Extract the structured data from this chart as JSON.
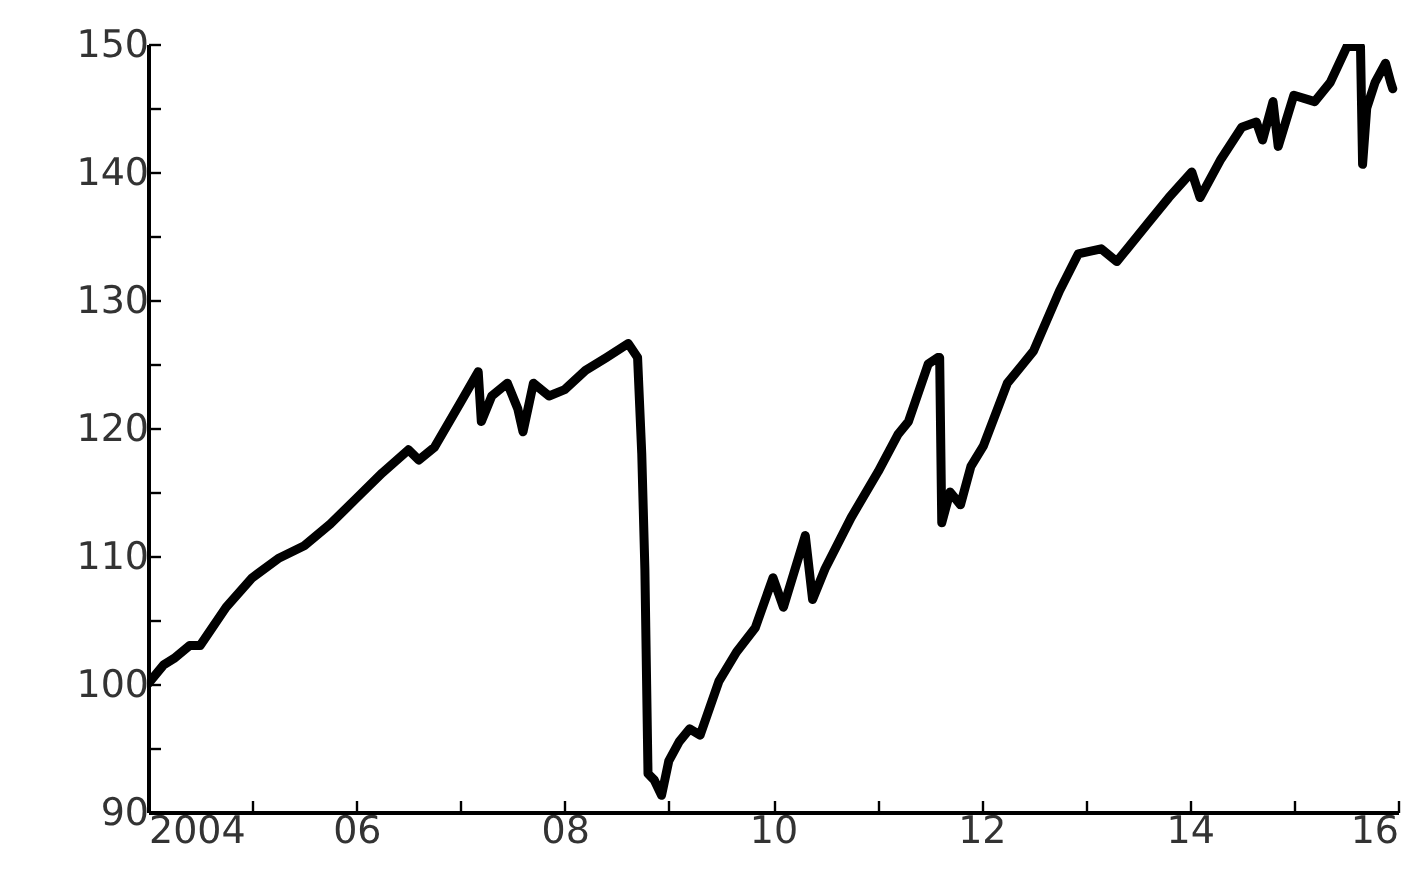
{
  "chart_data": {
    "type": "line",
    "xlim": [
      2004,
      2016
    ],
    "ylim": [
      90,
      150
    ],
    "xticks": [
      2004,
      {
        "value": 2005,
        "label": null
      },
      {
        "value": 2006,
        "label": "06"
      },
      {
        "value": 2007,
        "label": null
      },
      {
        "value": 2008,
        "label": "08"
      },
      {
        "value": 2009,
        "label": null
      },
      {
        "value": 2010,
        "label": "10"
      },
      {
        "value": 2011,
        "label": null
      },
      {
        "value": 2012,
        "label": "12"
      },
      {
        "value": 2013,
        "label": null
      },
      {
        "value": 2014,
        "label": "14"
      },
      {
        "value": 2015,
        "label": null
      },
      {
        "value": 2016,
        "label": "16"
      }
    ],
    "yticks": [
      90,
      {
        "value": 95,
        "label": null
      },
      100,
      {
        "value": 105,
        "label": null
      },
      110,
      {
        "value": 115,
        "label": null
      },
      120,
      {
        "value": 125,
        "label": null
      },
      130,
      {
        "value": 135,
        "label": null
      },
      140,
      {
        "value": 145,
        "label": null
      },
      150
    ],
    "grid": false,
    "marker": "none",
    "line_style": "solid",
    "series": [
      {
        "color": "#000000",
        "x": [
          2004.0,
          2004.15,
          2004.25,
          2004.4,
          2004.5,
          2004.75,
          2005.0,
          2005.25,
          2005.5,
          2005.75,
          2006.0,
          2006.25,
          2006.5,
          2006.6,
          2006.75,
          2007.0,
          2007.17,
          2007.2,
          2007.3,
          2007.45,
          2007.55,
          2007.6,
          2007.7,
          2007.85,
          2008.0,
          2008.2,
          2008.4,
          2008.61,
          2008.7,
          2008.74,
          2008.77,
          2008.8,
          2008.86,
          2008.93,
          2009.0,
          2009.1,
          2009.2,
          2009.3,
          2009.48,
          2009.65,
          2009.83,
          2010.0,
          2010.1,
          2010.31,
          2010.38,
          2010.5,
          2010.75,
          2011.01,
          2011.2,
          2011.3,
          2011.49,
          2011.58,
          2011.6,
          2011.62,
          2011.7,
          2011.8,
          2011.9,
          2012.02,
          2012.25,
          2012.5,
          2012.75,
          2012.93,
          2013.15,
          2013.3,
          2013.4,
          2013.6,
          2013.8,
          2014.02,
          2014.1,
          2014.3,
          2014.5,
          2014.64,
          2014.7,
          2014.8,
          2014.85,
          2015.0,
          2015.2,
          2015.35,
          2015.51,
          2015.6,
          2015.64,
          2015.66,
          2015.7,
          2015.78,
          2015.88,
          2015.93,
          2015.95
        ],
        "values": [
          100,
          101.5,
          102,
          103,
          103,
          106,
          108.3,
          109.8,
          110.8,
          112.5,
          114.5,
          116.5,
          118.3,
          117.5,
          118.5,
          122,
          124.4,
          120.5,
          122.5,
          123.5,
          121.5,
          119.7,
          123.5,
          122.5,
          123,
          124.5,
          125.5,
          126.6,
          125.5,
          118,
          109,
          93,
          92.5,
          91.3,
          94,
          95.5,
          96.5,
          96,
          100.2,
          102.5,
          104.4,
          108.3,
          106,
          111.6,
          106.6,
          109,
          113,
          116.6,
          119.5,
          120.5,
          125,
          125.5,
          125.5,
          112.6,
          115,
          114,
          117,
          118.6,
          123.5,
          126,
          130.7,
          133.6,
          134,
          133,
          134,
          136,
          138,
          140,
          138,
          141,
          143.5,
          143.9,
          142.5,
          145.5,
          142,
          146,
          145.5,
          147,
          149.8,
          149.8,
          149.8,
          140.6,
          145,
          147,
          148.5,
          147,
          146.5
        ]
      }
    ]
  }
}
